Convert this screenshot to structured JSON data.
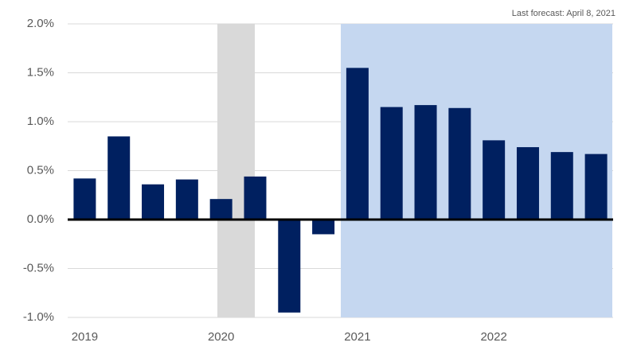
{
  "chart_data": {
    "type": "bar",
    "annotation": "Last forecast: April 8, 2021",
    "categories": [
      "2019",
      null,
      null,
      null,
      "2020",
      null,
      null,
      null,
      "2021",
      null,
      null,
      null,
      "2022",
      null,
      null,
      null
    ],
    "values": [
      0.42,
      0.85,
      0.36,
      0.41,
      0.21,
      0.44,
      -0.95,
      -0.15,
      1.55,
      1.15,
      1.17,
      1.14,
      0.81,
      0.74,
      0.69,
      0.67
    ],
    "color": "#002060",
    "ylim": [
      -1.0,
      2.0
    ],
    "yticks": [
      {
        "value": -1.0,
        "label": "-1.0%"
      },
      {
        "value": -0.5,
        "label": "-0.5%"
      },
      {
        "value": 0,
        "label": "0.0%"
      },
      {
        "value": 0.5,
        "label": "0.5%"
      },
      {
        "value": 1.0,
        "label": "1.0%"
      },
      {
        "value": 1.5,
        "label": "1.5%"
      },
      {
        "value": 2.0,
        "label": "2.0%"
      }
    ],
    "grid": true
  }
}
